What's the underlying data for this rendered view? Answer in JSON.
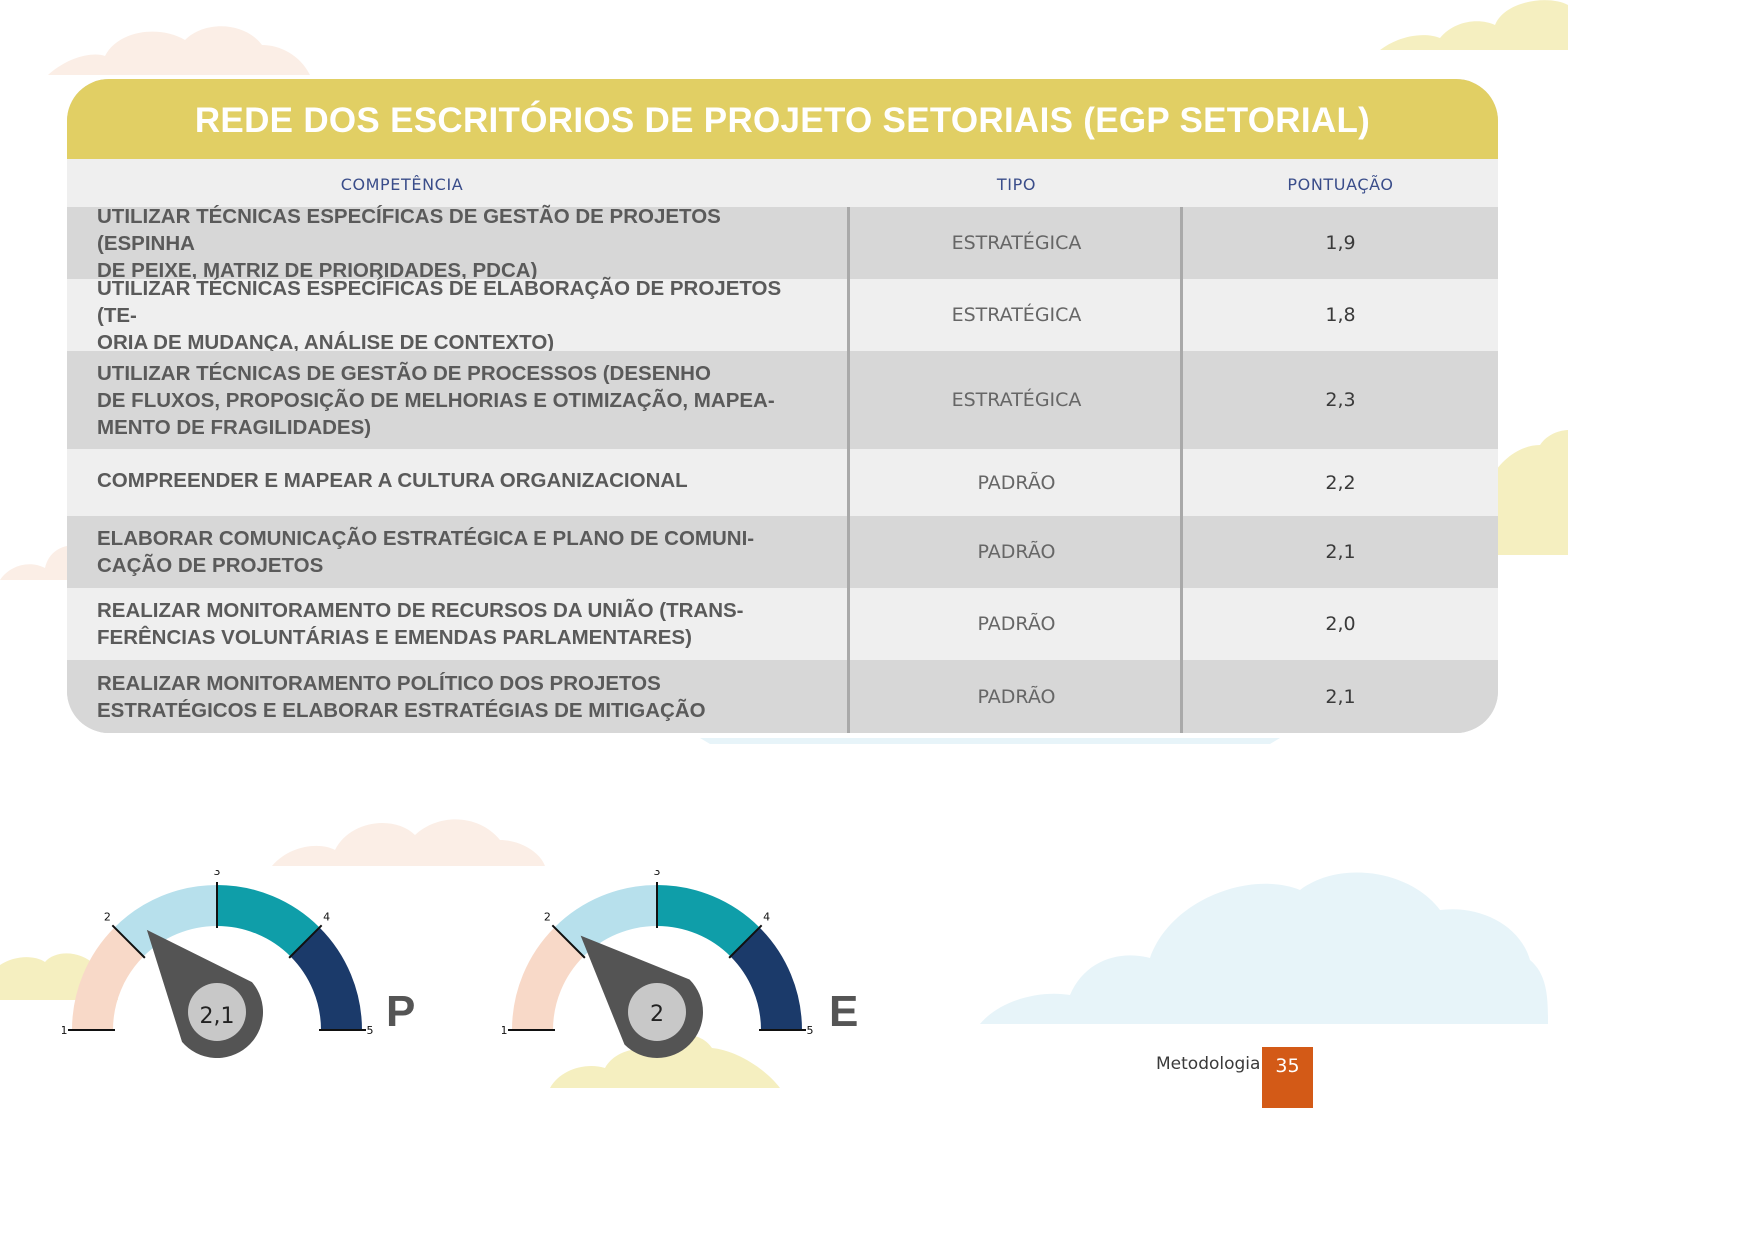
{
  "title": "REDE DOS ESCRITÓRIOS DE PROJETO SETORIAIS (EGP SETORIAL)",
  "table": {
    "headers": [
      "COMPETÊNCIA",
      "TIPO",
      "PONTUAÇÃO"
    ],
    "rows": [
      {
        "competencia": "UTILIZAR TÉCNICAS ESPECÍFICAS DE GESTÃO DE PROJETOS (ESPINHA\nDE PEIXE, MATRIZ DE PRIORIDADES, PDCA)",
        "tipo": "ESTRATÉGICA",
        "pontuacao": "1,9"
      },
      {
        "competencia": "UTILIZAR TÉCNICAS ESPECÍFICAS DE ELABORAÇÃO DE PROJETOS (TE-\nORIA DE MUDANÇA, ANÁLISE DE CONTEXTO)",
        "tipo": "ESTRATÉGICA",
        "pontuacao": "1,8"
      },
      {
        "competencia": "UTILIZAR TÉCNICAS DE GESTÃO DE PROCESSOS (DESENHO\nDE FLUXOS, PROPOSIÇÃO DE MELHORIAS E OTIMIZAÇÃO, MAPEA-\nMENTO DE FRAGILIDADES)",
        "tipo": "ESTRATÉGICA",
        "pontuacao": "2,3"
      },
      {
        "competencia": "COMPREENDER E MAPEAR A CULTURA ORGANIZACIONAL",
        "tipo": "PADRÃO",
        "pontuacao": "2,2"
      },
      {
        "competencia": "ELABORAR COMUNICAÇÃO ESTRATÉGICA E PLANO DE COMUNI-\nCAÇÃO DE PROJETOS",
        "tipo": "PADRÃO",
        "pontuacao": "2,1"
      },
      {
        "competencia": "REALIZAR MONITORAMENTO DE RECURSOS DA UNIÃO (TRANS-\nFERÊNCIAS VOLUNTÁRIAS E EMENDAS PARLAMENTARES)",
        "tipo": "PADRÃO",
        "pontuacao": "2,0"
      },
      {
        "competencia": "REALIZAR MONITORAMENTO POLÍTICO DOS PROJETOS\nESTRATÉGICOS E ELABORAR ESTRATÉGIAS DE MITIGAÇÃO",
        "tipo": "PADRÃO",
        "pontuacao": "2,1"
      }
    ]
  },
  "gauges": [
    {
      "letter": "P",
      "value": 2.1,
      "label": "2,1",
      "ticks": [
        "1",
        "2",
        "3",
        "4",
        "5"
      ]
    },
    {
      "letter": "E",
      "value": 2.0,
      "label": "2",
      "ticks": [
        "1",
        "2",
        "3",
        "4",
        "5"
      ]
    }
  ],
  "gauge_colors": [
    "#f8d9c8",
    "#b7e0ec",
    "#0f9ea9",
    "#1b3a6a"
  ],
  "colors": {
    "title_bar": "#e1cf64",
    "page_box": "#d35a17",
    "needle": "#545454",
    "hub": "#c8c8c8"
  },
  "footer": {
    "section": "Metodologia",
    "page": "35"
  }
}
